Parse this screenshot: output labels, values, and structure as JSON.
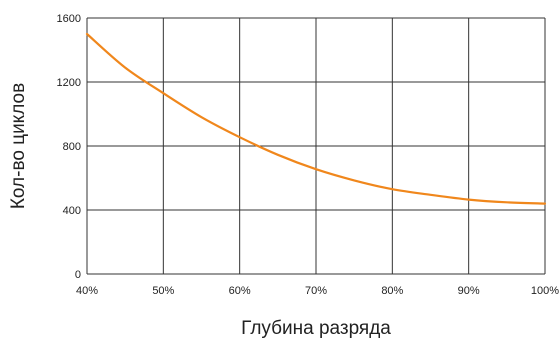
{
  "chart_data": {
    "type": "line",
    "title": "",
    "xlabel": "Глубина разряда",
    "ylabel": "Кол-во циклов",
    "x": [
      40,
      45,
      50,
      55,
      60,
      65,
      70,
      75,
      80,
      85,
      90,
      95,
      100
    ],
    "x_tick_labels": [
      "40%",
      "50%",
      "60%",
      "70%",
      "80%",
      "90%",
      "100%"
    ],
    "x_ticks": [
      40,
      50,
      60,
      70,
      80,
      90,
      100
    ],
    "xlim": [
      40,
      100
    ],
    "y_ticks": [
      0,
      400,
      800,
      1200,
      1600
    ],
    "y_tick_labels": [
      "0",
      "400",
      "800",
      "1200",
      "1600"
    ],
    "ylim": [
      0,
      1600
    ],
    "grid": true,
    "legend": "none",
    "series": [
      {
        "color": "#f0871c",
        "values": [
          1500,
          1290,
          1130,
          980,
          855,
          745,
          655,
          585,
          530,
          495,
          465,
          448,
          440
        ]
      }
    ]
  }
}
